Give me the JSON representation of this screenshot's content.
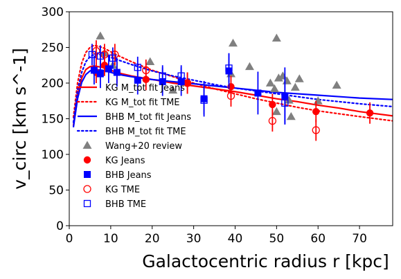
{
  "chart_data": {
    "type": "scatter",
    "xlabel": "Galactocentric radius r [kpc]",
    "ylabel": "v_circ [km s^-1]",
    "xlim": [
      0,
      78
    ],
    "ylim": [
      0,
      300
    ],
    "xticks": [
      "0",
      "10",
      "20",
      "30",
      "40",
      "50",
      "60",
      "70"
    ],
    "yticks": [
      "0",
      "50",
      "100",
      "150",
      "200",
      "250",
      "300"
    ],
    "legend_position": "bottom-left",
    "grid": false,
    "colors": {
      "kg": "#ff0000",
      "bhb": "#0000ff",
      "wang": "#808080"
    },
    "lines": [
      {
        "name": "KG M_tot fit Jeans",
        "style": "solid",
        "color": "#ff0000",
        "x": [
          1,
          2,
          3,
          4,
          5,
          6,
          8,
          10,
          12,
          15,
          20,
          25,
          30,
          35,
          40,
          45,
          50,
          55,
          60,
          65,
          70,
          78
        ],
        "y": [
          140,
          183,
          207,
          219,
          223,
          224,
          222,
          218,
          214,
          210,
          205,
          200,
          196,
          192,
          188,
          183,
          178,
          174,
          169,
          165,
          160,
          154
        ]
      },
      {
        "name": "KG M_tot fit TME",
        "style": "dotted",
        "color": "#ff0000",
        "x": [
          1,
          2,
          3,
          4,
          5,
          6,
          8,
          10,
          12,
          15,
          20,
          25,
          30,
          35,
          40,
          45,
          50,
          55,
          60,
          65,
          70,
          78
        ],
        "y": [
          152,
          200,
          228,
          243,
          250,
          253,
          250,
          244,
          238,
          230,
          218,
          209,
          200,
          192,
          185,
          178,
          172,
          166,
          161,
          157,
          153,
          147
        ]
      },
      {
        "name": "BHB M_tot fit Jeans",
        "style": "solid",
        "color": "#0000ff",
        "x": [
          1,
          2,
          3,
          4,
          5,
          6,
          8,
          10,
          12,
          15,
          20,
          25,
          30,
          35,
          40,
          45,
          50,
          55,
          60,
          65,
          70,
          78
        ],
        "y": [
          138,
          178,
          201,
          212,
          217,
          219,
          218,
          215,
          212,
          209,
          205,
          202,
          199,
          196,
          193,
          190,
          187,
          185,
          183,
          181,
          179,
          177
        ]
      },
      {
        "name": "BHB M_tot fit TME",
        "style": "dotted",
        "color": "#0000ff",
        "x": [
          1,
          2,
          3,
          4,
          5,
          6,
          8,
          10,
          12,
          15,
          20,
          25,
          30,
          35,
          40,
          45,
          50,
          55,
          60,
          65,
          70,
          78
        ],
        "y": [
          145,
          190,
          215,
          230,
          237,
          240,
          240,
          236,
          232,
          226,
          217,
          210,
          204,
          198,
          193,
          189,
          185,
          181,
          177,
          174,
          171,
          167
        ]
      }
    ],
    "wang_review": {
      "name": "Wang+20 review",
      "x": [
        7.5,
        8.5,
        10.5,
        19.5,
        39.5,
        43.5,
        48.5,
        49.5,
        50.5,
        51.5,
        52.5,
        53.5,
        54.5,
        55.5,
        64.5,
        39.0,
        50.0,
        53.0,
        25.0,
        60.0,
        50.0
      ],
      "y": [
        266,
        242,
        225,
        230,
        256,
        223,
        200,
        192,
        207,
        210,
        203,
        153,
        194,
        206,
        197,
        213,
        263,
        176,
        190,
        175,
        160
      ]
    },
    "kg_jeans": {
      "name": "KG Jeans",
      "x": [
        6.5,
        8.5,
        11.5,
        18.5,
        28.5,
        39.0,
        49.0,
        59.5,
        72.5
      ],
      "y": [
        215,
        225,
        215,
        205,
        200,
        195,
        170,
        160,
        158
      ],
      "yerr": [
        15,
        15,
        15,
        15,
        15,
        15,
        15,
        15,
        15
      ]
    },
    "bhb_jeans": {
      "name": "BHB Jeans",
      "x": [
        6.0,
        7.5,
        9.5,
        11.5,
        16.5,
        22.5,
        27.0,
        32.5,
        38.5,
        45.5,
        52.0
      ],
      "y": [
        218,
        213,
        220,
        215,
        204,
        202,
        202,
        178,
        217,
        186,
        182
      ],
      "yerr": [
        20,
        20,
        20,
        20,
        20,
        20,
        20,
        25,
        25,
        30,
        40
      ]
    },
    "kg_tme": {
      "name": "KG TME",
      "x": [
        6.5,
        8.5,
        11.0,
        18.5,
        28.5,
        39.0,
        49.0,
        59.5
      ],
      "y": [
        245,
        240,
        240,
        218,
        200,
        182,
        147,
        134
      ],
      "yerr": [
        15,
        15,
        15,
        15,
        15,
        15,
        15,
        15
      ]
    },
    "bhb_tme": {
      "name": "BHB TME",
      "x": [
        5.5,
        7.5,
        10.5,
        16.5,
        22.5,
        27.0,
        32.5,
        38.5,
        52.0
      ],
      "y": [
        240,
        238,
        235,
        222,
        210,
        210,
        176,
        221,
        172
      ],
      "yerr": [
        15,
        15,
        15,
        15,
        15,
        15,
        20,
        20,
        30
      ]
    },
    "legend": [
      {
        "label": "KG M_tot fit Jeans",
        "mark": "line",
        "style": "solid",
        "color": "#ff0000"
      },
      {
        "label": "KG M_tot fit TME",
        "mark": "line",
        "style": "dotted",
        "color": "#ff0000"
      },
      {
        "label": "BHB M_tot fit Jeans",
        "mark": "line",
        "style": "solid",
        "color": "#0000ff"
      },
      {
        "label": "BHB M_tot fit TME",
        "mark": "line",
        "style": "dotted",
        "color": "#0000ff"
      },
      {
        "label": "Wang+20 review",
        "mark": "triangle",
        "color": "#808080"
      },
      {
        "label": "KG Jeans",
        "mark": "circle-filled",
        "color": "#ff0000"
      },
      {
        "label": "BHB Jeans",
        "mark": "square-filled",
        "color": "#0000ff"
      },
      {
        "label": "KG TME",
        "mark": "circle-open",
        "color": "#ff0000"
      },
      {
        "label": "BHB TME",
        "mark": "square-open",
        "color": "#0000ff"
      }
    ]
  }
}
